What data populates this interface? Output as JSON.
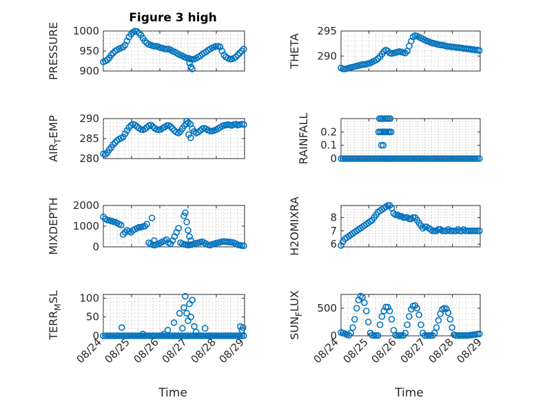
{
  "figure": {
    "title": "Figure 3 high",
    "xlabel": "Time"
  },
  "colors": {
    "series": "#0072BD",
    "axes": "#262626",
    "grid": "#c9c9c9"
  },
  "chart_data": [
    {
      "type": "scatter",
      "ylabel": "PRESSURE",
      "xlim": [
        0,
        5
      ],
      "ylim": [
        900,
        1000
      ],
      "yticks": [
        900,
        950,
        1000
      ],
      "x": [
        0.0,
        0.07,
        0.14,
        0.21,
        0.28,
        0.35,
        0.42,
        0.49,
        0.56,
        0.63,
        0.7,
        0.77,
        0.84,
        0.91,
        0.98,
        1.05,
        1.12,
        1.19,
        1.26,
        1.33,
        1.4,
        1.47,
        1.54,
        1.61,
        1.68,
        1.75,
        1.82,
        1.89,
        1.96,
        2.03,
        2.1,
        2.17,
        2.24,
        2.31,
        2.38,
        2.45,
        2.52,
        2.59,
        2.66,
        2.73,
        2.8,
        2.87,
        2.94,
        3.01,
        3.08,
        3.15,
        3.22,
        3.29,
        3.36,
        3.43,
        3.5,
        3.57,
        3.64,
        3.71,
        3.78,
        3.85,
        3.92,
        3.99,
        4.06,
        4.13,
        4.2,
        4.27,
        4.34,
        4.41,
        4.48,
        4.55,
        4.62,
        4.69,
        4.76,
        4.83,
        4.9,
        4.97,
        3.05,
        3.1,
        3.15
      ],
      "y": [
        923,
        925,
        928,
        933,
        940,
        945,
        950,
        953,
        956,
        958,
        960,
        965,
        975,
        985,
        992,
        997,
        1000,
        999,
        995,
        990,
        982,
        975,
        970,
        966,
        965,
        963,
        962,
        962,
        960,
        958,
        957,
        955,
        955,
        955,
        953,
        950,
        948,
        945,
        942,
        940,
        938,
        935,
        933,
        932,
        930,
        929,
        930,
        932,
        935,
        938,
        942,
        945,
        948,
        952,
        955,
        958,
        960,
        962,
        962,
        960,
        950,
        940,
        935,
        932,
        930,
        930,
        932,
        935,
        940,
        945,
        950,
        955,
        920,
        910,
        905
      ]
    },
    {
      "type": "scatter",
      "ylabel": "THETA",
      "xlim": [
        0,
        5
      ],
      "ylim": [
        287,
        295
      ],
      "yticks": [
        290,
        295
      ],
      "x": [
        0.0,
        0.07,
        0.14,
        0.21,
        0.28,
        0.35,
        0.42,
        0.49,
        0.56,
        0.63,
        0.7,
        0.77,
        0.84,
        0.91,
        0.98,
        1.05,
        1.12,
        1.19,
        1.26,
        1.33,
        1.4,
        1.47,
        1.54,
        1.61,
        1.68,
        1.75,
        1.82,
        1.89,
        1.96,
        2.03,
        2.1,
        2.17,
        2.24,
        2.31,
        2.38,
        2.45,
        2.52,
        2.59,
        2.66,
        2.73,
        2.8,
        2.87,
        2.94,
        3.01,
        3.08,
        3.15,
        3.22,
        3.29,
        3.36,
        3.43,
        3.5,
        3.57,
        3.64,
        3.71,
        3.78,
        3.85,
        3.92,
        3.99,
        4.06,
        4.13,
        4.2,
        4.27,
        4.34,
        4.41,
        4.48,
        4.55,
        4.62,
        4.69,
        4.76,
        4.83,
        4.9,
        4.97
      ],
      "y": [
        287.6,
        287.4,
        287.4,
        287.5,
        287.6,
        287.7,
        287.8,
        287.9,
        288.0,
        288.1,
        288.2,
        288.3,
        288.3,
        288.4,
        288.5,
        288.6,
        288.8,
        289.0,
        289.2,
        289.5,
        289.9,
        290.4,
        290.9,
        291.2,
        291.0,
        290.6,
        290.5,
        290.6,
        290.7,
        290.8,
        290.9,
        290.8,
        290.7,
        290.6,
        291.0,
        292.0,
        293.0,
        293.8,
        294.1,
        294.0,
        293.8,
        293.6,
        293.4,
        293.2,
        293.0,
        292.9,
        292.7,
        292.6,
        292.5,
        292.4,
        292.3,
        292.2,
        292.2,
        292.1,
        292.0,
        291.9,
        291.9,
        291.8,
        291.8,
        291.7,
        291.7,
        291.6,
        291.6,
        291.5,
        291.5,
        291.4,
        291.4,
        291.3,
        291.3,
        291.2,
        291.2,
        291.1
      ]
    },
    {
      "type": "scatter",
      "ylabel": "AIR_TEMP",
      "xlim": [
        0,
        5
      ],
      "ylim": [
        280,
        290
      ],
      "yticks": [
        280,
        285,
        290
      ],
      "x": [
        0.0,
        0.07,
        0.14,
        0.21,
        0.28,
        0.35,
        0.42,
        0.49,
        0.56,
        0.63,
        0.7,
        0.77,
        0.84,
        0.91,
        0.98,
        1.05,
        1.12,
        1.19,
        1.26,
        1.33,
        1.4,
        1.47,
        1.54,
        1.61,
        1.68,
        1.75,
        1.82,
        1.89,
        1.96,
        2.03,
        2.1,
        2.17,
        2.24,
        2.31,
        2.38,
        2.45,
        2.52,
        2.59,
        2.66,
        2.73,
        2.8,
        2.87,
        2.94,
        3.01,
        3.08,
        3.15,
        3.22,
        3.29,
        3.36,
        3.43,
        3.5,
        3.57,
        3.64,
        3.71,
        3.78,
        3.85,
        3.92,
        3.99,
        4.06,
        4.13,
        4.2,
        4.27,
        4.34,
        4.41,
        4.48,
        4.55,
        4.62,
        4.69,
        4.76,
        4.83,
        4.9,
        4.97,
        2.95,
        3.02,
        3.09
      ],
      "y": [
        281.2,
        281.0,
        281.5,
        282.2,
        282.8,
        283.5,
        284.0,
        284.5,
        284.9,
        285.1,
        285.4,
        286.2,
        287.0,
        287.8,
        288.3,
        288.6,
        288.4,
        288.0,
        287.6,
        287.3,
        287.2,
        287.4,
        287.8,
        288.2,
        288.4,
        288.0,
        287.6,
        287.3,
        287.2,
        287.3,
        287.6,
        287.9,
        288.2,
        288.3,
        288.0,
        287.5,
        287.0,
        286.6,
        286.4,
        286.8,
        287.5,
        288.2,
        288.7,
        289.0,
        288.6,
        287.5,
        286.8,
        286.4,
        286.6,
        287.0,
        287.4,
        287.6,
        287.4,
        287.1,
        286.9,
        286.9,
        287.0,
        287.2,
        287.5,
        287.8,
        288.1,
        288.3,
        288.4,
        288.5,
        288.4,
        288.3,
        288.5,
        288.6,
        288.4,
        288.5,
        288.6,
        288.5,
        289.4,
        286.0,
        285.2
      ]
    },
    {
      "type": "scatter",
      "ylabel": "RAINFALL",
      "xlim": [
        0,
        5
      ],
      "ylim": [
        0,
        0.3
      ],
      "yticks": [
        0,
        0.1,
        0.2
      ],
      "x": [
        0.0,
        0.07,
        0.14,
        0.21,
        0.28,
        0.35,
        0.42,
        0.49,
        0.56,
        0.63,
        0.7,
        0.77,
        0.84,
        0.91,
        0.98,
        1.05,
        1.12,
        1.19,
        1.26,
        1.33,
        1.4,
        1.47,
        1.54,
        1.61,
        1.68,
        1.75,
        1.82,
        1.89,
        1.96,
        2.03,
        2.1,
        2.17,
        2.24,
        2.31,
        2.38,
        2.45,
        2.52,
        2.59,
        2.66,
        2.73,
        2.8,
        2.87,
        2.94,
        3.01,
        3.08,
        3.15,
        3.22,
        3.29,
        3.36,
        3.43,
        3.5,
        3.57,
        3.64,
        3.71,
        3.78,
        3.85,
        3.92,
        3.99,
        4.06,
        4.13,
        4.2,
        4.27,
        4.34,
        4.41,
        4.48,
        4.55,
        4.62,
        4.69,
        4.76,
        4.83,
        4.9,
        4.97,
        1.35,
        1.38,
        1.41,
        1.44,
        1.47,
        1.5,
        1.53,
        1.56,
        1.59,
        1.62,
        1.65,
        1.68,
        1.71,
        1.74,
        1.77,
        1.8,
        1.45,
        1.52,
        1.58,
        1.62
      ],
      "y": [
        0,
        0,
        0,
        0,
        0,
        0,
        0,
        0,
        0,
        0,
        0,
        0,
        0,
        0,
        0,
        0,
        0,
        0,
        0,
        0,
        0,
        0,
        0,
        0,
        0,
        0,
        0,
        0,
        0,
        0,
        0,
        0,
        0,
        0,
        0,
        0,
        0,
        0,
        0,
        0,
        0,
        0,
        0,
        0,
        0,
        0,
        0,
        0,
        0,
        0,
        0,
        0,
        0,
        0,
        0,
        0,
        0,
        0,
        0,
        0,
        0,
        0,
        0,
        0,
        0,
        0,
        0,
        0,
        0,
        0,
        0,
        0,
        0.2,
        0.3,
        0.2,
        0.3,
        0.2,
        0.3,
        0.2,
        0.2,
        0.3,
        0.2,
        0.3,
        0.2,
        0.3,
        0.2,
        0.3,
        0.2,
        0.1,
        0.1,
        0.2,
        0
      ]
    },
    {
      "type": "scatter",
      "ylabel": "MIXDEPTH",
      "xlim": [
        0,
        5
      ],
      "ylim": [
        0,
        2000
      ],
      "yticks": [
        0,
        1000,
        2000
      ],
      "x": [
        0.0,
        0.07,
        0.14,
        0.21,
        0.28,
        0.35,
        0.42,
        0.49,
        0.56,
        0.63,
        0.7,
        0.77,
        0.84,
        0.91,
        0.98,
        1.05,
        1.12,
        1.19,
        1.26,
        1.33,
        1.4,
        1.47,
        1.54,
        1.61,
        1.68,
        1.75,
        1.82,
        1.89,
        1.96,
        2.03,
        2.1,
        2.17,
        2.24,
        2.31,
        2.38,
        2.45,
        2.52,
        2.59,
        2.66,
        2.73,
        2.8,
        2.87,
        2.94,
        3.01,
        3.08,
        3.15,
        3.22,
        3.29,
        3.36,
        3.43,
        3.5,
        3.57,
        3.64,
        3.71,
        3.78,
        3.85,
        3.92,
        3.99,
        4.06,
        4.13,
        4.2,
        4.27,
        4.34,
        4.41,
        4.48,
        4.55,
        4.62,
        4.69,
        4.76,
        4.83,
        4.9,
        4.97,
        2.85,
        2.9,
        2.95,
        3.0,
        3.05,
        3.1,
        1.72,
        1.8
      ],
      "y": [
        1450,
        1350,
        1300,
        1280,
        1250,
        1220,
        1200,
        1150,
        1100,
        1050,
        600,
        700,
        800,
        750,
        700,
        800,
        850,
        900,
        950,
        950,
        980,
        1000,
        1100,
        200,
        150,
        100,
        80,
        120,
        150,
        200,
        250,
        300,
        350,
        200,
        150,
        300,
        500,
        700,
        900,
        200,
        150,
        120,
        100,
        80,
        100,
        120,
        150,
        180,
        200,
        220,
        250,
        200,
        150,
        100,
        80,
        120,
        150,
        180,
        200,
        220,
        250,
        260,
        250,
        240,
        230,
        220,
        200,
        150,
        100,
        80,
        60,
        50,
        1500,
        1650,
        1200,
        800,
        500,
        300,
        1400,
        300
      ]
    },
    {
      "type": "scatter",
      "ylabel": "H2OMIXRA",
      "xlim": [
        0,
        5
      ],
      "ylim": [
        5.8,
        8.9
      ],
      "yticks": [
        6,
        7,
        8
      ],
      "x": [
        0.0,
        0.07,
        0.14,
        0.21,
        0.28,
        0.35,
        0.42,
        0.49,
        0.56,
        0.63,
        0.7,
        0.77,
        0.84,
        0.91,
        0.98,
        1.05,
        1.12,
        1.19,
        1.26,
        1.33,
        1.4,
        1.47,
        1.54,
        1.61,
        1.68,
        1.75,
        1.82,
        1.89,
        1.96,
        2.03,
        2.1,
        2.17,
        2.24,
        2.31,
        2.38,
        2.45,
        2.52,
        2.59,
        2.66,
        2.73,
        2.8,
        2.87,
        2.94,
        3.01,
        3.08,
        3.15,
        3.22,
        3.29,
        3.36,
        3.43,
        3.5,
        3.57,
        3.64,
        3.71,
        3.78,
        3.85,
        3.92,
        3.99,
        4.06,
        4.13,
        4.2,
        4.27,
        4.34,
        4.41,
        4.48,
        4.55,
        4.62,
        4.69,
        4.76,
        4.83,
        4.9,
        4.97
      ],
      "y": [
        5.9,
        6.2,
        6.4,
        6.5,
        6.6,
        6.7,
        6.8,
        6.9,
        7.0,
        7.1,
        7.2,
        7.3,
        7.4,
        7.5,
        7.6,
        7.7,
        7.8,
        8.0,
        8.2,
        8.4,
        8.5,
        8.6,
        8.7,
        8.8,
        8.9,
        8.9,
        8.7,
        8.3,
        8.2,
        8.2,
        8.1,
        8.1,
        8.0,
        8.0,
        8.0,
        7.9,
        7.9,
        8.0,
        8.0,
        7.8,
        7.6,
        7.4,
        7.2,
        7.3,
        7.3,
        7.2,
        7.1,
        7.0,
        7.0,
        7.0,
        7.1,
        7.1,
        7.0,
        7.0,
        7.0,
        7.1,
        7.0,
        7.0,
        7.0,
        7.0,
        7.1,
        7.0,
        7.0,
        7.1,
        7.0,
        7.0,
        7.0,
        7.0,
        7.0,
        7.0,
        7.0,
        7.0
      ]
    },
    {
      "type": "scatter",
      "ylabel": "TERR_MSL",
      "xlim": [
        0,
        5
      ],
      "ylim": [
        0,
        110
      ],
      "yticks": [
        0,
        50,
        100
      ],
      "x": [
        0.0,
        0.07,
        0.14,
        0.21,
        0.28,
        0.35,
        0.42,
        0.49,
        0.56,
        0.63,
        0.7,
        0.77,
        0.84,
        0.91,
        0.98,
        1.05,
        1.12,
        1.19,
        1.26,
        1.33,
        1.4,
        1.47,
        1.54,
        1.61,
        1.68,
        1.75,
        1.82,
        1.89,
        1.96,
        2.03,
        2.1,
        2.17,
        2.24,
        2.31,
        2.38,
        2.45,
        2.52,
        2.59,
        2.66,
        2.73,
        2.8,
        2.87,
        2.94,
        3.01,
        3.08,
        3.15,
        3.22,
        3.29,
        3.36,
        3.43,
        3.5,
        3.57,
        3.64,
        3.71,
        3.78,
        3.85,
        3.92,
        3.99,
        4.06,
        4.13,
        4.2,
        4.27,
        4.34,
        4.41,
        4.48,
        4.55,
        4.62,
        4.69,
        4.76,
        4.83,
        4.9,
        4.97,
        0.65,
        1.4,
        2.15,
        2.28,
        2.5,
        2.7,
        2.8,
        2.85,
        2.9,
        2.95,
        3.0,
        3.05,
        3.1,
        3.15,
        3.22,
        3.28,
        3.6,
        4.85,
        4.9,
        4.95
      ],
      "y": [
        0,
        0,
        0,
        0,
        0,
        0,
        0,
        0,
        0,
        0,
        0,
        0,
        0,
        0,
        0,
        0,
        0,
        0,
        0,
        0,
        0,
        0,
        0,
        0,
        0,
        0,
        0,
        0,
        0,
        0,
        0,
        0,
        0,
        0,
        0,
        0,
        0,
        0,
        0,
        0,
        0,
        0,
        0,
        0,
        0,
        0,
        0,
        0,
        0,
        0,
        0,
        0,
        0,
        0,
        0,
        0,
        0,
        0,
        0,
        0,
        0,
        0,
        0,
        0,
        0,
        0,
        0,
        0,
        0,
        0,
        0,
        0,
        22,
        5,
        5,
        15,
        35,
        60,
        20,
        75,
        105,
        60,
        40,
        85,
        50,
        95,
        25,
        10,
        20,
        25,
        15,
        22
      ]
    },
    {
      "type": "scatter",
      "ylabel": "SUN_FLUX",
      "xlim": [
        0,
        5
      ],
      "ylim": [
        0,
        750
      ],
      "yticks": [
        0,
        500
      ],
      "x": [
        0.0,
        0.07,
        0.14,
        0.21,
        0.28,
        0.35,
        0.42,
        0.49,
        0.56,
        0.63,
        0.7,
        0.77,
        0.84,
        0.91,
        0.98,
        1.05,
        1.12,
        1.19,
        1.26,
        1.33,
        1.4,
        1.47,
        1.54,
        1.61,
        1.68,
        1.75,
        1.82,
        1.89,
        1.96,
        2.03,
        2.1,
        2.17,
        2.24,
        2.31,
        2.38,
        2.45,
        2.52,
        2.59,
        2.66,
        2.73,
        2.8,
        2.87,
        2.94,
        3.01,
        3.08,
        3.15,
        3.22,
        3.29,
        3.36,
        3.43,
        3.5,
        3.57,
        3.64,
        3.71,
        3.78,
        3.85,
        3.92,
        3.99,
        4.06,
        4.13,
        4.2,
        4.27,
        4.34,
        4.41,
        4.48,
        4.55,
        4.62,
        4.69,
        4.76,
        4.83,
        4.9,
        4.97
      ],
      "y": [
        60,
        50,
        40,
        20,
        10,
        50,
        150,
        300,
        500,
        650,
        720,
        700,
        600,
        450,
        250,
        50,
        10,
        5,
        5,
        5,
        200,
        350,
        450,
        520,
        520,
        450,
        300,
        100,
        10,
        5,
        5,
        5,
        5,
        50,
        200,
        350,
        480,
        540,
        550,
        500,
        380,
        200,
        50,
        5,
        5,
        5,
        5,
        5,
        50,
        150,
        280,
        400,
        480,
        500,
        490,
        420,
        300,
        150,
        20,
        5,
        5,
        5,
        5,
        5,
        5,
        5,
        10,
        15,
        20,
        25,
        30,
        35
      ]
    }
  ],
  "xtick_labels": [
    "08/24",
    "08/25",
    "08/26",
    "08/27",
    "08/28",
    "08/29"
  ]
}
